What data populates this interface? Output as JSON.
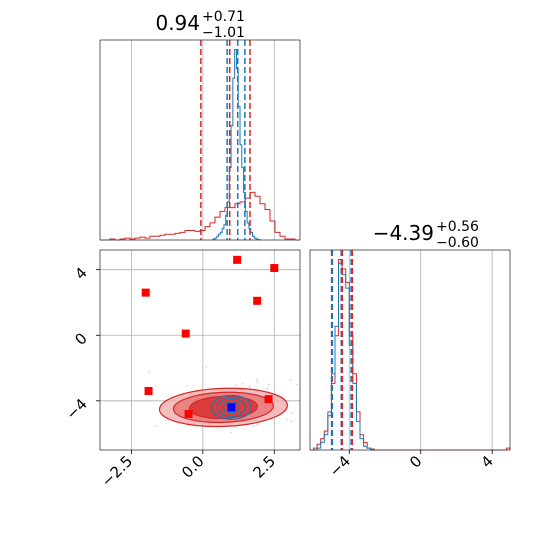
{
  "chart_data": {
    "type": "corner",
    "colors": {
      "red": "#d62728",
      "blue": "#1f77b4",
      "marker_red": "#ff0000",
      "marker_blue": "#0000ff"
    },
    "grid": true,
    "param1": {
      "title_value": "0.94",
      "title_plus": "+0.71",
      "title_minus": "−1.01",
      "xlim": [
        -3.6,
        3.4
      ],
      "ticks": [
        -2.5,
        0.0,
        2.5
      ],
      "tick_labels": [
        "−2.5",
        "0.0",
        "2.5"
      ],
      "red_quantiles": [
        -0.07,
        0.94,
        1.65
      ],
      "blue_quantiles": [
        0.85,
        1.22,
        1.47
      ],
      "hist_red": {
        "x0": -3.6,
        "bin_width": 0.175,
        "values": [
          0,
          0,
          0.5,
          0,
          0.5,
          1,
          0.5,
          1,
          1.5,
          1,
          2,
          2,
          2.5,
          3,
          3,
          3.5,
          4,
          5,
          5,
          4.5,
          5,
          7,
          9,
          12,
          15,
          17,
          17,
          19,
          20,
          22,
          25,
          23,
          19,
          16,
          10,
          4,
          2,
          0.5,
          0.5,
          0
        ]
      },
      "hist_blue": {
        "x0": 0.3,
        "bin_width": 0.0625,
        "values": [
          0,
          0.5,
          1,
          2,
          3,
          4,
          6,
          8,
          13,
          20,
          38,
          60,
          85,
          100,
          90,
          70,
          50,
          38,
          25,
          15,
          9,
          6,
          4,
          2,
          1,
          0.5,
          0.2,
          0
        ]
      }
    },
    "param2": {
      "title_value": "−4.39",
      "title_plus": "+0.56",
      "title_minus": "−0.60",
      "xlim": [
        -6.2,
        5.0
      ],
      "ticks": [
        -4,
        0,
        4
      ],
      "tick_labels": [
        "−4",
        "0",
        "4"
      ],
      "red_quantiles": [
        -4.99,
        -4.39,
        -3.83
      ],
      "blue_quantiles": [
        -4.95,
        -4.45,
        -3.9
      ],
      "hist_red": {
        "x0": -6.2,
        "bin_width": 0.2,
        "values": [
          0,
          1,
          3,
          6,
          10,
          18,
          35,
          60,
          100,
          95,
          88,
          60,
          40,
          20,
          8,
          4,
          1,
          0.5,
          0,
          0,
          0,
          0,
          0,
          0,
          0,
          0,
          0,
          0,
          0,
          0,
          0,
          0,
          0,
          0,
          0,
          0,
          0,
          0,
          0,
          0,
          0,
          0,
          0,
          0,
          0,
          0,
          0,
          0,
          0,
          0,
          0,
          0,
          0,
          0,
          0,
          1
        ]
      },
      "hist_blue": {
        "x0": -6.2,
        "bin_width": 0.2,
        "values": [
          0,
          0,
          1,
          4,
          8,
          20,
          40,
          65,
          98,
          92,
          85,
          55,
          35,
          15,
          6,
          2,
          1,
          0
        ]
      }
    },
    "joint": {
      "xlim": [
        -3.6,
        3.4
      ],
      "ylim": [
        -7.0,
        5.2
      ],
      "yticks": [
        -4,
        0,
        4
      ],
      "ytick_labels": [
        "−4",
        "0",
        "4"
      ],
      "red_contour_center": [
        1.0,
        -4.4
      ],
      "red_squares": [
        [
          -2.0,
          2.6
        ],
        [
          -1.9,
          -3.4
        ],
        [
          -0.6,
          0.1
        ],
        [
          -0.5,
          -4.8
        ],
        [
          1.2,
          4.6
        ],
        [
          1.9,
          2.1
        ],
        [
          2.3,
          -3.9
        ],
        [
          2.5,
          4.1
        ]
      ],
      "blue_square": [
        1.0,
        -4.4
      ]
    }
  }
}
